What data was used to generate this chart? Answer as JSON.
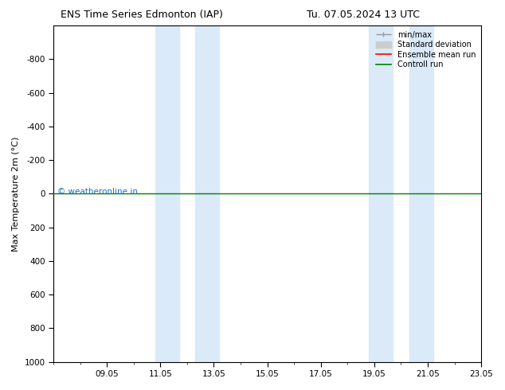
{
  "title_left": "ENS Time Series Edmonton (IAP)",
  "title_right": "Tu. 07.05.2024 13 UTC",
  "ylabel": "Max Temperature 2m (°C)",
  "xlim": [
    0,
    16
  ],
  "ylim": [
    -1000,
    1000
  ],
  "yticks": [
    -800,
    -600,
    -400,
    -200,
    0,
    200,
    400,
    600,
    800,
    1000
  ],
  "xtick_positions": [
    2,
    4,
    6,
    8,
    10,
    12,
    14,
    16
  ],
  "xtick_labels": [
    "09.05",
    "11.05",
    "13.05",
    "15.05",
    "17.05",
    "19.05",
    "21.05",
    "23.05"
  ],
  "shaded_regions": [
    [
      3.8,
      4.7
    ],
    [
      5.3,
      6.2
    ],
    [
      11.8,
      12.7
    ],
    [
      13.3,
      14.2
    ]
  ],
  "shaded_color": "#daeaf8",
  "green_line_y": 0,
  "watermark": "© weatheronline.in",
  "watermark_color": "#1a6fc4",
  "background_color": "#ffffff",
  "legend_minmax_color": "#999999",
  "legend_std_color": "#cccccc",
  "legend_ensemble_color": "red",
  "legend_control_color": "green"
}
